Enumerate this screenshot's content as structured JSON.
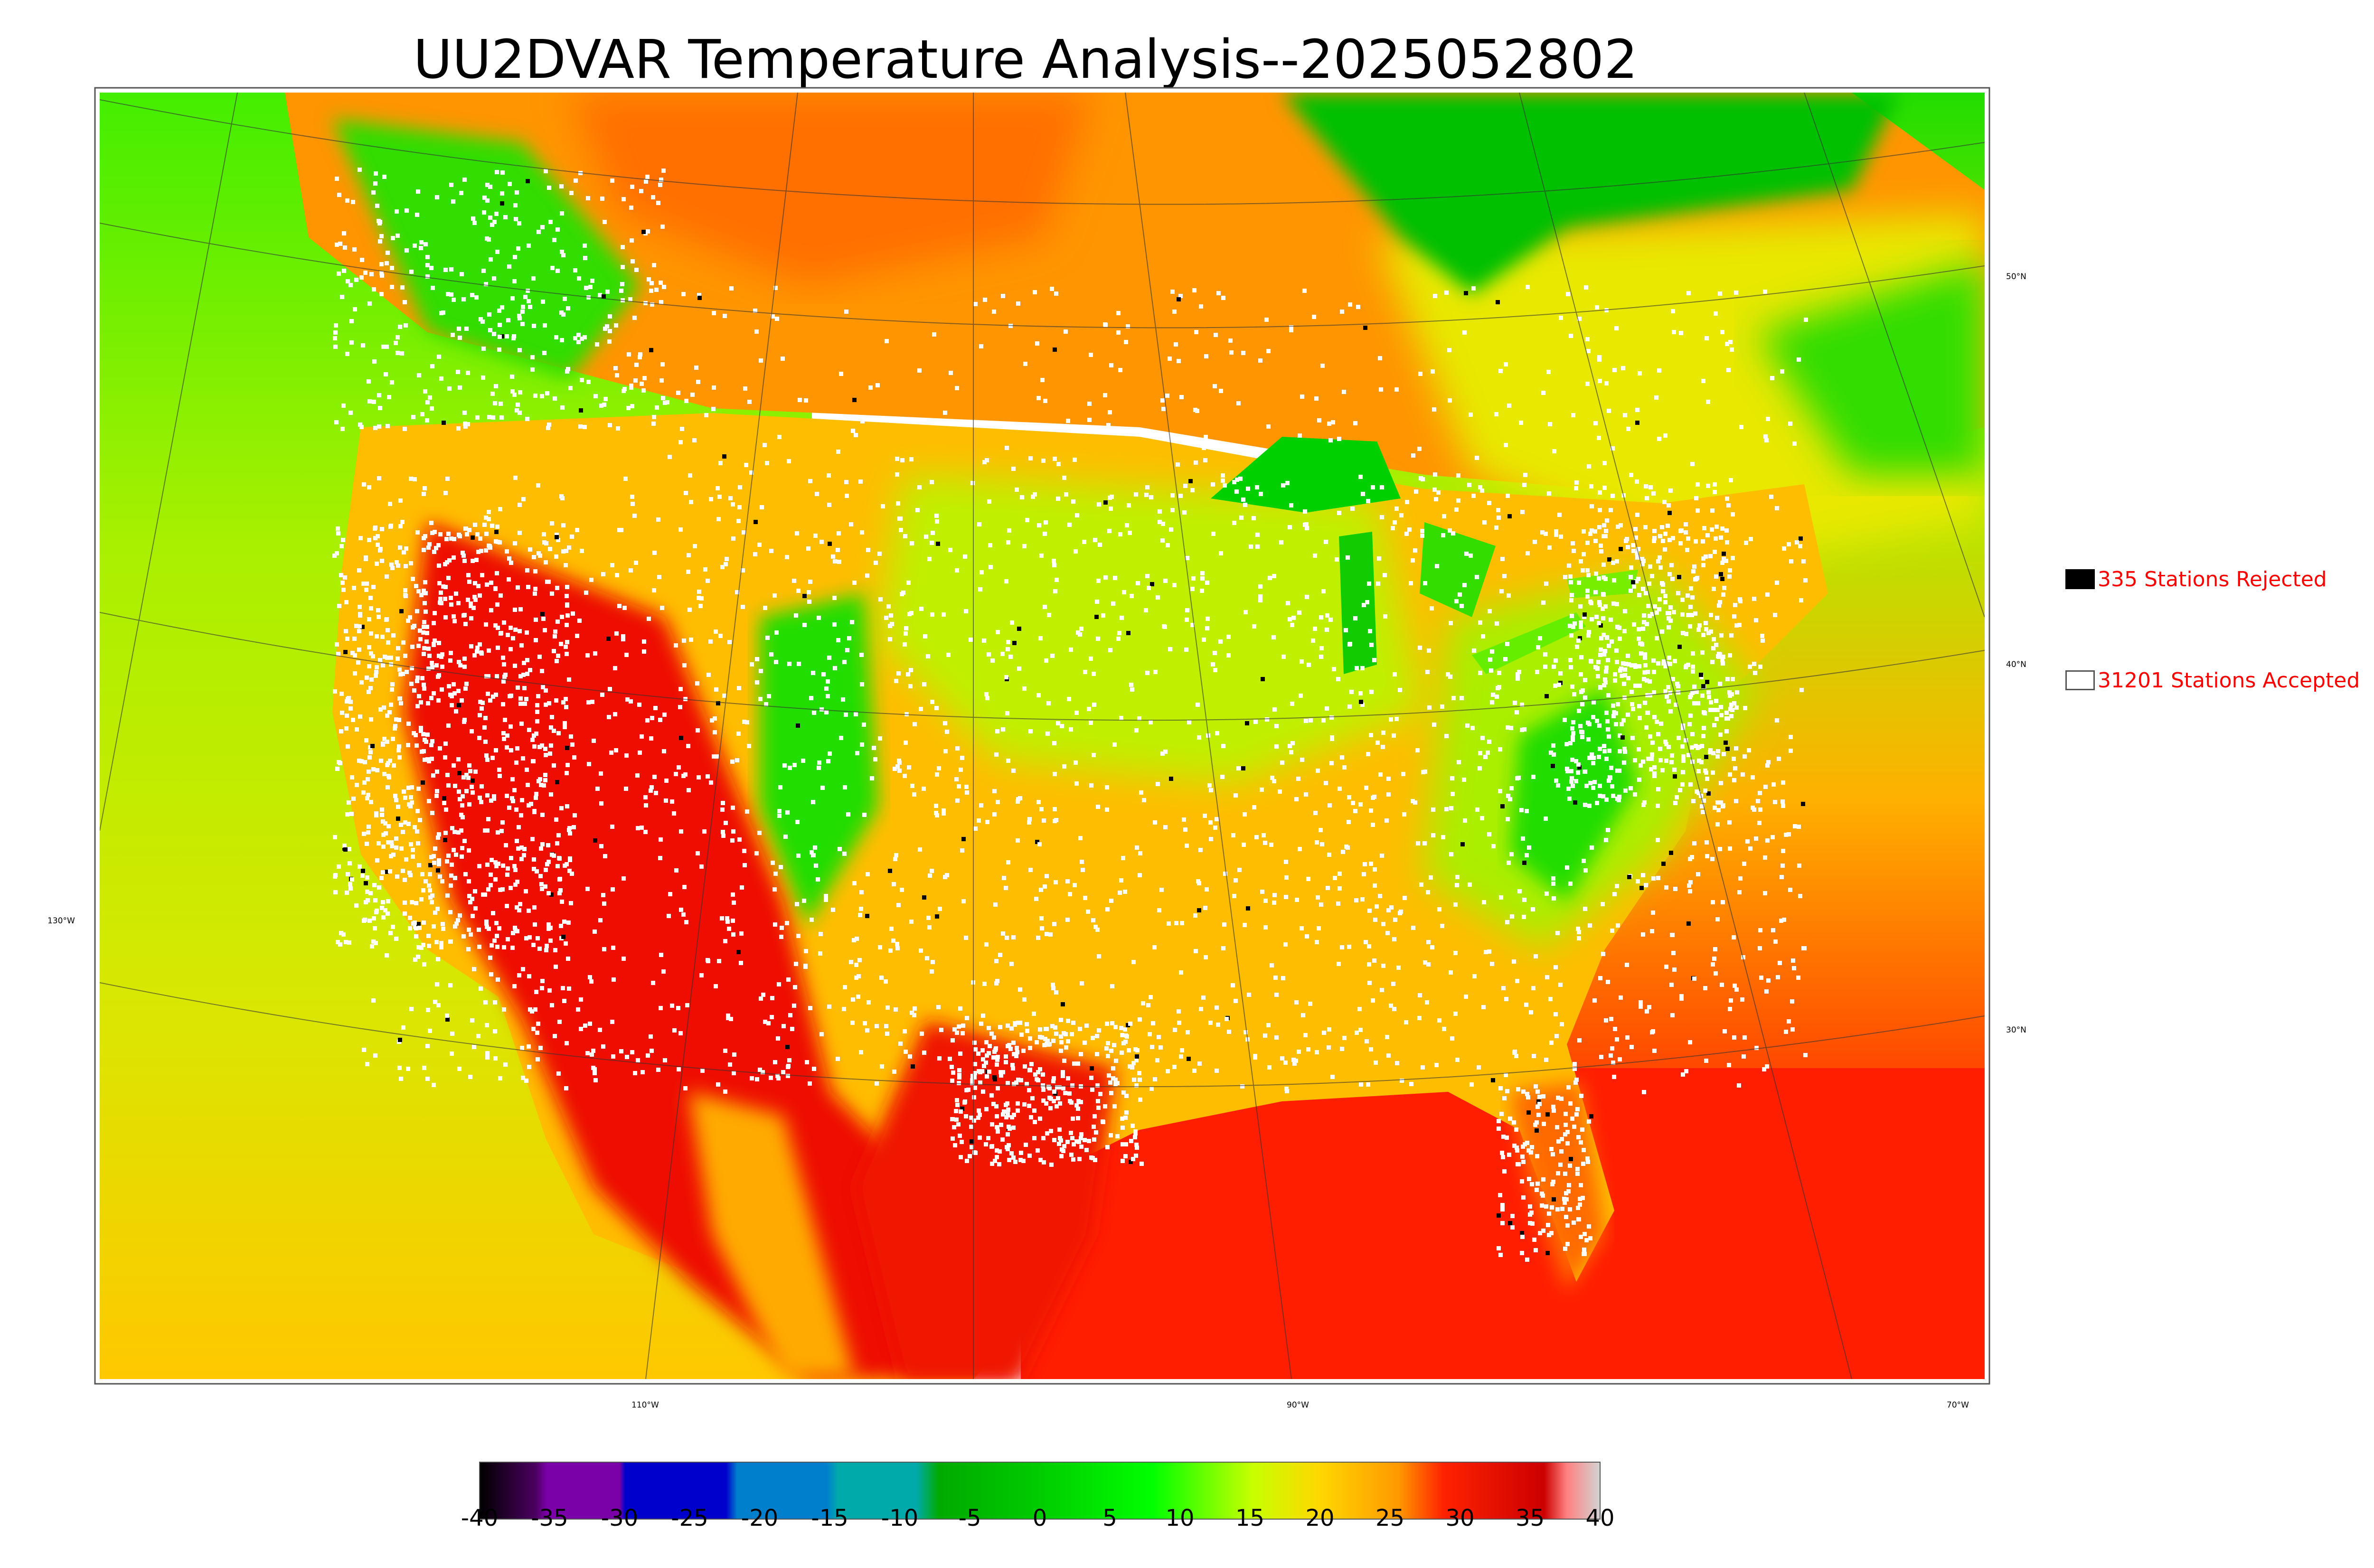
{
  "title": "UU2DVAR Temperature Analysis--2025052802",
  "legend": {
    "rejected": {
      "label": "335 Stations Rejected",
      "color": "#000000"
    },
    "accepted": {
      "label": "31201 Stations Accepted",
      "color": "#ffffff"
    }
  },
  "graticule": {
    "longitudes": [
      "130°W",
      "110°W",
      "90°W",
      "70°W"
    ],
    "latitudes": [
      "50°N",
      "40°N",
      "30°N"
    ]
  },
  "colorbar": {
    "ticks": [
      "-40",
      "-35",
      "-30",
      "-25",
      "-20",
      "-15",
      "-10",
      "-5",
      "0",
      "5",
      "10",
      "15",
      "20",
      "25",
      "30",
      "35",
      "40"
    ],
    "min": -40,
    "max": 40,
    "colors": [
      "#000000",
      "#4b0060",
      "#7a00a8",
      "#0000cc",
      "#0080cc",
      "#00aaaa",
      "#00aa00",
      "#00ff00",
      "#c8ff00",
      "#ffd700",
      "#ff9900",
      "#ff2200",
      "#cc0000",
      "#ff8080",
      "#d3d3d3"
    ]
  },
  "palette": {
    "ocean_pacific": "#c8e400",
    "ocean_gulf": "#ff2200",
    "land_warm": "#ffb000",
    "land_hot": "#ee1100",
    "land_cool": "#9fe800",
    "north_canada": "#ff7a00",
    "hudson_bay": "#00c000",
    "great_lakes": "#00d000"
  }
}
